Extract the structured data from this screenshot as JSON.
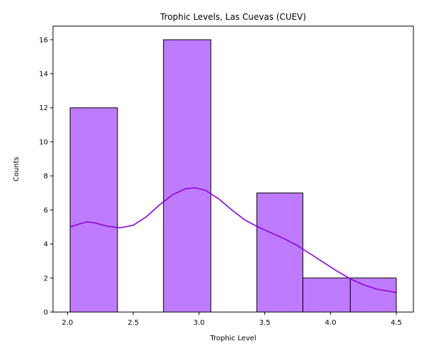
{
  "chart_data": {
    "type": "bar",
    "title": "Trophic Levels, Las Cuevas (CUEV)",
    "xlabel": "Trophic Level",
    "ylabel": "Counts",
    "xlim": [
      1.89,
      4.63
    ],
    "ylim": [
      0,
      16.8
    ],
    "bins": [
      {
        "x0": 2.02,
        "x1": 2.38,
        "count": 12
      },
      {
        "x0": 2.38,
        "x1": 2.73,
        "count": 0
      },
      {
        "x0": 2.73,
        "x1": 3.09,
        "count": 16
      },
      {
        "x0": 3.09,
        "x1": 3.44,
        "count": 0
      },
      {
        "x0": 3.44,
        "x1": 3.79,
        "count": 7
      },
      {
        "x0": 3.79,
        "x1": 4.15,
        "count": 2
      },
      {
        "x0": 4.15,
        "x1": 4.5,
        "count": 2
      }
    ],
    "kde": {
      "x": [
        2.02,
        2.1,
        2.15,
        2.2,
        2.3,
        2.4,
        2.5,
        2.6,
        2.7,
        2.8,
        2.9,
        2.97,
        3.05,
        3.15,
        3.25,
        3.35,
        3.45,
        3.55,
        3.65,
        3.75,
        3.85,
        3.95,
        4.05,
        4.15,
        4.25,
        4.35,
        4.5
      ],
      "y": [
        5.0,
        5.2,
        5.3,
        5.25,
        5.05,
        4.95,
        5.1,
        5.6,
        6.3,
        6.9,
        7.25,
        7.3,
        7.15,
        6.65,
        6.0,
        5.4,
        5.0,
        4.65,
        4.3,
        3.9,
        3.4,
        2.9,
        2.4,
        1.95,
        1.6,
        1.35,
        1.15
      ]
    },
    "xticks": [
      2.0,
      2.5,
      3.0,
      3.5,
      4.0,
      4.5
    ],
    "xtick_labels": [
      "2.0",
      "2.5",
      "3.0",
      "3.5",
      "4.0",
      "4.5"
    ],
    "yticks": [
      0,
      2,
      4,
      6,
      8,
      10,
      12,
      14,
      16
    ],
    "ytick_labels": [
      "0",
      "2",
      "4",
      "6",
      "8",
      "10",
      "12",
      "14",
      "16"
    ],
    "grid": false,
    "colors": {
      "bar_fill": "#bf7bff",
      "bar_edge": "#000000",
      "kde_line": "#8a00e6"
    }
  }
}
